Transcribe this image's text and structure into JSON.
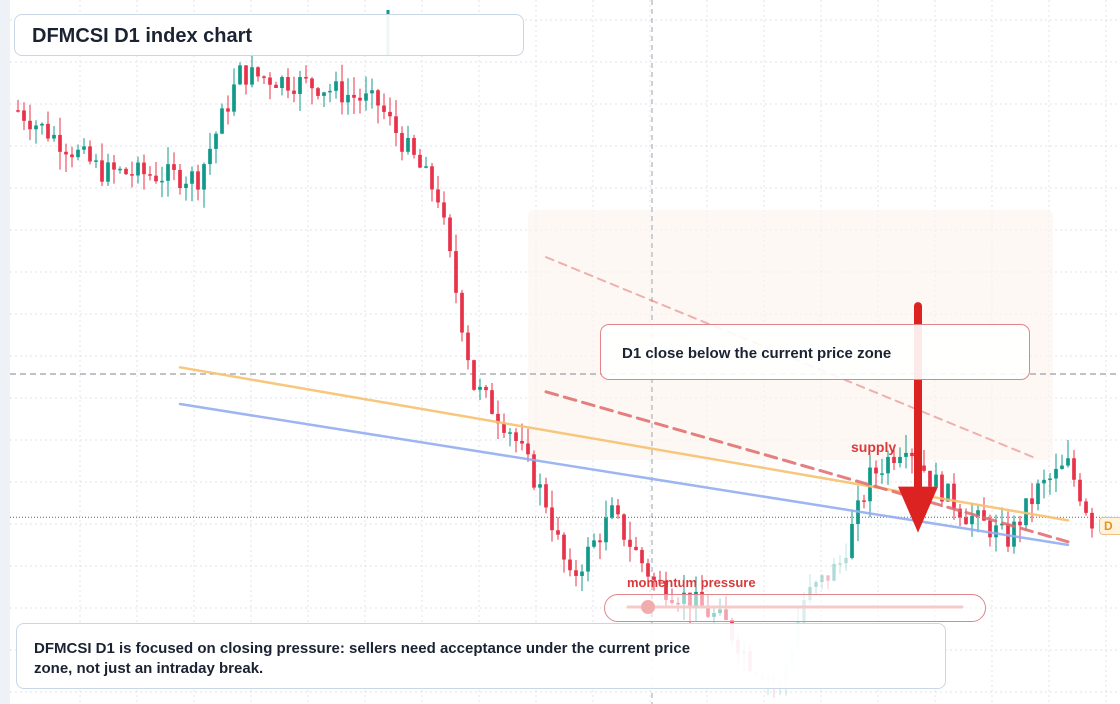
{
  "title": "DFMCSI D1 index chart",
  "annotations": {
    "callout": "D1 close below the current price zone",
    "supply_label": "supply",
    "momentum_label": "momentum pressure",
    "summary": "DFMCSI D1 is focused on closing pressure: sellers need acceptance under the current price zone, not just an intraday break.",
    "price_tag": "D"
  },
  "colors": {
    "up": "#12998a",
    "down": "#e8324a",
    "ema_fast": "#f6c170",
    "ema_slow": "#93aef0",
    "channel": "#e06b6b",
    "arrow": "#dd2222",
    "annotation_border": "#e0858c"
  },
  "chart_data": {
    "type": "candlestick",
    "title": "DFMCSI D1 index chart",
    "series_style": {
      "up_color": "#12998a",
      "down_color": "#e8324a"
    },
    "gridlines": true,
    "current_price_zone": {
      "level": 28.9,
      "style": "dashed"
    },
    "reference_line": {
      "level": 5.5,
      "style": "dotted"
    },
    "overlays": [
      {
        "kind": "line",
        "color": "#f6c170",
        "points": [
          [
            27,
            30.0
          ],
          [
            175,
            5.0
          ]
        ]
      },
      {
        "kind": "line",
        "color": "#93aef0",
        "points": [
          [
            27,
            24.0
          ],
          [
            175,
            1.0
          ]
        ]
      },
      {
        "kind": "dashed-line",
        "color": "#e06b6b",
        "points": [
          [
            88,
            26.0
          ],
          [
            175,
            1.5
          ]
        ]
      },
      {
        "kind": "dashed-line",
        "color": "#e06b6b",
        "points": [
          [
            88,
            48.0
          ],
          [
            170,
            15.0
          ]
        ]
      }
    ],
    "arrow": {
      "from": [
        150,
        40.0
      ],
      "to": [
        150,
        3.0
      ]
    },
    "momentum_marker": {
      "value": 0.06
    }
  }
}
